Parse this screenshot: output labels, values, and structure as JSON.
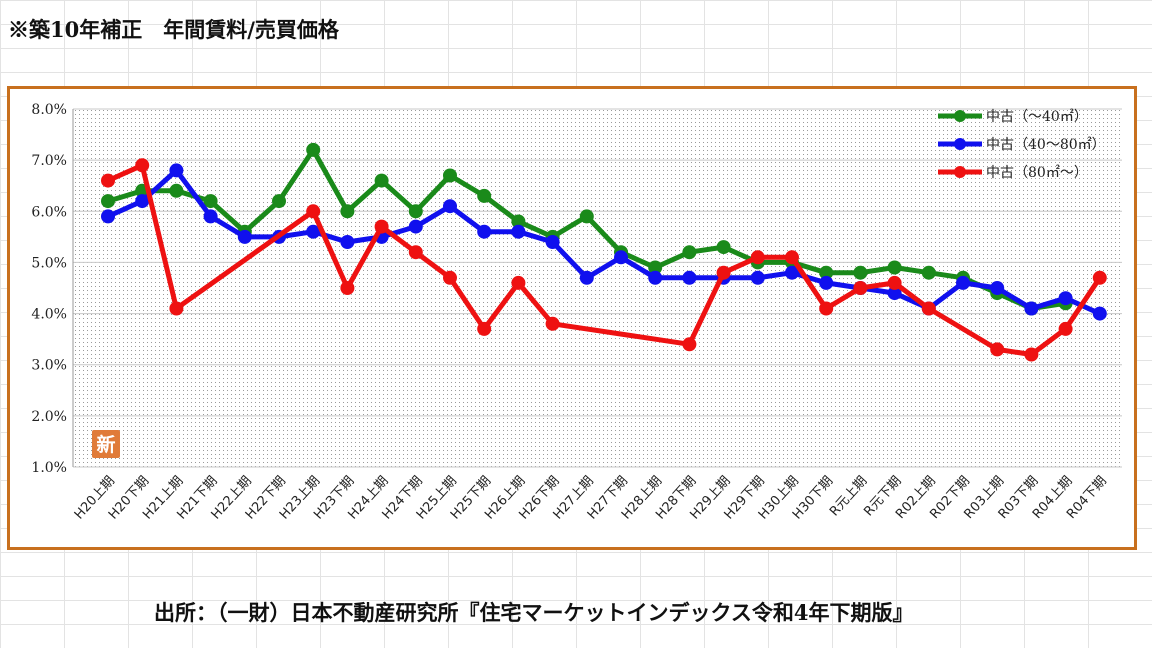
{
  "title": "※築10年補正　年間賃料/売買価格",
  "source": "出所：（一財）日本不動産研究所『住宅マーケットインデックス令和4年下期版』",
  "badge": "新",
  "colors": {
    "frame": "#c8701e",
    "badge": "#e07b39"
  },
  "chart_data": {
    "type": "line",
    "title": "",
    "xlabel": "",
    "ylabel": "",
    "ylim": [
      1.0,
      8.0
    ],
    "yticks": [
      "1.0%",
      "2.0%",
      "3.0%",
      "4.0%",
      "5.0%",
      "6.0%",
      "7.0%",
      "8.0%"
    ],
    "categories": [
      "H20上期",
      "H20下期",
      "H21上期",
      "H21下期",
      "H22上期",
      "H22下期",
      "H23上期",
      "H23下期",
      "H24上期",
      "H24下期",
      "H25上期",
      "H25下期",
      "H26上期",
      "H26下期",
      "H27上期",
      "H27下期",
      "H28上期",
      "H28下期",
      "H29上期",
      "H29下期",
      "H30上期",
      "H30下期",
      "R元上期",
      "R元下期",
      "R02上期",
      "R02下期",
      "R03上期",
      "R03下期",
      "R04上期",
      "R04下期"
    ],
    "grid": true,
    "legend_position": "top-right",
    "series": [
      {
        "name": "中古（～40㎡）",
        "color": "#1a8a1a",
        "values": [
          6.2,
          6.4,
          6.4,
          6.2,
          5.6,
          6.2,
          7.2,
          6.0,
          6.6,
          6.0,
          6.7,
          6.3,
          5.8,
          5.5,
          5.9,
          5.2,
          4.9,
          5.2,
          5.3,
          5.0,
          5.0,
          4.8,
          4.8,
          4.9,
          4.8,
          4.7,
          4.4,
          4.1,
          4.2,
          null
        ]
      },
      {
        "name": "中古（40～80㎡）",
        "color": "#1010ee",
        "values": [
          5.9,
          6.2,
          6.8,
          5.9,
          5.5,
          5.5,
          5.6,
          5.4,
          5.5,
          5.7,
          6.1,
          5.6,
          5.6,
          5.4,
          4.7,
          5.1,
          4.7,
          4.7,
          4.7,
          4.7,
          4.8,
          4.6,
          4.5,
          4.4,
          4.1,
          4.6,
          4.5,
          4.1,
          4.3,
          4.0
        ]
      },
      {
        "name": "中古（80㎡～）",
        "color": "#ee1111",
        "values": [
          6.6,
          6.9,
          4.1,
          null,
          null,
          null,
          6.0,
          4.5,
          5.7,
          5.2,
          4.7,
          3.7,
          4.6,
          3.8,
          null,
          null,
          null,
          3.4,
          4.8,
          5.1,
          5.1,
          4.1,
          4.5,
          4.6,
          4.1,
          null,
          3.3,
          3.2,
          3.7,
          4.7
        ]
      }
    ]
  }
}
